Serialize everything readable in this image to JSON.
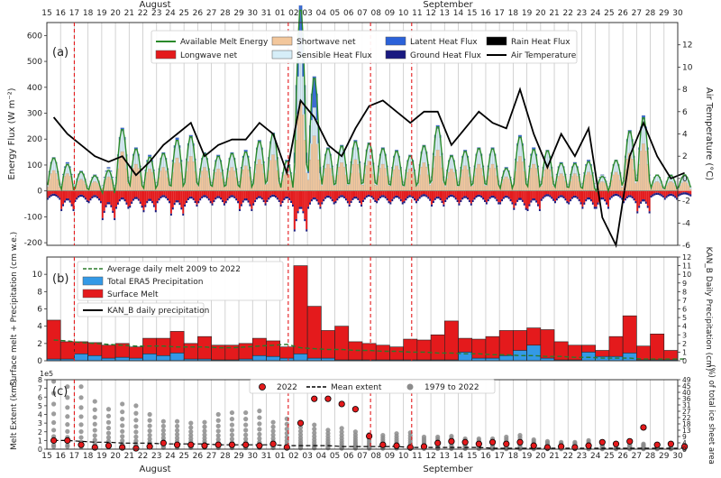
{
  "chart_data": {
    "days": [
      "15",
      "16",
      "17",
      "18",
      "19",
      "20",
      "21",
      "22",
      "23",
      "24",
      "25",
      "26",
      "27",
      "28",
      "29",
      "30",
      "31",
      "01",
      "02",
      "03",
      "04",
      "05",
      "06",
      "07",
      "08",
      "09",
      "10",
      "11",
      "12",
      "13",
      "14",
      "15",
      "16",
      "17",
      "18",
      "19",
      "20",
      "21",
      "22",
      "23",
      "24",
      "25",
      "26",
      "27",
      "28",
      "29",
      "30"
    ],
    "month_top_left": "August",
    "month_top_right": "September",
    "month_bottom_left": "August",
    "month_bottom_right": "September",
    "event_days": [
      2,
      17.6,
      23.6,
      26.6
    ],
    "panel_a": {
      "type": "bar",
      "label": "(a)",
      "ylabel": "Energy Flux (W m⁻²)",
      "y2label": "Air Temperature (°C)",
      "ylim": [
        -210,
        650
      ],
      "y2lim": [
        -6,
        14
      ],
      "yticks": [
        "-200",
        "-100",
        "0",
        "100",
        "200",
        "300",
        "400",
        "500",
        "600"
      ],
      "yticks_values": [
        -200,
        -100,
        0,
        100,
        200,
        300,
        400,
        500,
        600
      ],
      "y2ticks": [
        "-6",
        "-4",
        "-2",
        "0",
        "2",
        "4",
        "6",
        "8",
        "10",
        "12"
      ],
      "y2ticks_values": [
        -6,
        -4,
        -2,
        0,
        2,
        4,
        6,
        8,
        10,
        12
      ],
      "legend": [
        {
          "label": "Available Melt Energy",
          "color": "#2a8a2a",
          "kind": "line"
        },
        {
          "label": "Longwave net",
          "color": "#e41a1c",
          "kind": "box"
        },
        {
          "label": "Shortwave net",
          "color": "#f3c79c",
          "kind": "box"
        },
        {
          "label": "Sensible Heat Flux",
          "color": "#d6eef8",
          "kind": "box"
        },
        {
          "label": "Latent Heat Flux",
          "color": "#2b62d9",
          "kind": "box"
        },
        {
          "label": "Ground Heat Flux",
          "color": "#1a1a80",
          "kind": "box"
        },
        {
          "label": "Rain Heat Flux",
          "color": "#000000",
          "kind": "box"
        },
        {
          "label": "Air Temperature",
          "color": "#000000",
          "kind": "line"
        }
      ],
      "daily_amplitude": [
        130,
        110,
        75,
        60,
        90,
        250,
        170,
        140,
        150,
        210,
        220,
        150,
        140,
        150,
        160,
        200,
        230,
        120,
        570,
        350,
        170,
        180,
        200,
        190,
        170,
        160,
        140,
        180,
        260,
        140,
        160,
        170,
        170,
        90,
        220,
        170,
        160,
        110,
        110,
        120,
        60,
        120,
        240,
        300,
        60,
        60,
        60
      ],
      "longwave_min": [
        -30,
        -80,
        -40,
        -45,
        -120,
        -70,
        -65,
        -85,
        -45,
        -100,
        -60,
        -45,
        -55,
        -45,
        -80,
        -55,
        -40,
        -60,
        -170,
        -70,
        -50,
        -45,
        -60,
        -40,
        -45,
        -50,
        -45,
        -35,
        -60,
        -40,
        -55,
        -40,
        -50,
        -50,
        -75,
        -80,
        -35,
        -45,
        -50,
        -70,
        -70,
        -30,
        -45,
        -90,
        -20,
        -30,
        -15
      ],
      "air_temperature": [
        5.5,
        4.0,
        3.0,
        2.0,
        1.5,
        2.0,
        0.3,
        1.5,
        3.0,
        4.0,
        5.0,
        2.0,
        3.0,
        3.5,
        3.5,
        5.0,
        4.0,
        0.5,
        7.0,
        5.5,
        3.0,
        2.0,
        4.5,
        6.5,
        7.0,
        6.0,
        5.0,
        6.0,
        6.0,
        3.0,
        4.5,
        6.0,
        5.0,
        4.5,
        8.0,
        4.0,
        1.0,
        4.0,
        2.0,
        4.5,
        -3.5,
        -6.0,
        2.0,
        5.0,
        2.0,
        0.0,
        0.5
      ]
    },
    "panel_b": {
      "type": "bar",
      "label": "(b)",
      "ylabel": "Surface melt + Precipitation (cm w.e.)",
      "y2label": "KAN_B Daily Precipitation (cm)",
      "ylim": [
        0,
        12
      ],
      "yticks": [
        "0",
        "2",
        "4",
        "6",
        "8",
        "10"
      ],
      "yticks_values": [
        0,
        2,
        4,
        6,
        8,
        10
      ],
      "y2ticks": [
        "0",
        "1",
        "2",
        "3",
        "4",
        "5",
        "6",
        "7",
        "8",
        "9",
        "10",
        "11",
        "12"
      ],
      "y2ticks_values": [
        0,
        1,
        2,
        3,
        4,
        5,
        6,
        7,
        8,
        9,
        10,
        11,
        12
      ],
      "legend": [
        {
          "label": "Average daily melt 2009 to 2022",
          "color": "#2a7a2a",
          "kind": "dashed"
        },
        {
          "label": "Total ERA5 Precipitation",
          "color": "#3399e6",
          "kind": "box"
        },
        {
          "label": "Surface Melt",
          "color": "#e41a1c",
          "kind": "box"
        },
        {
          "label": "KAN_B daily precipitation",
          "color": "#000000",
          "kind": "line"
        }
      ],
      "surface_melt_total": [
        4.7,
        2.2,
        2.2,
        2.1,
        1.8,
        2.0,
        1.6,
        2.6,
        2.6,
        3.4,
        2.0,
        2.8,
        1.8,
        1.8,
        2.0,
        2.6,
        2.3,
        1.6,
        11.0,
        6.3,
        3.5,
        4.0,
        2.2,
        2.0,
        1.8,
        1.6,
        2.5,
        2.4,
        3.0,
        4.6,
        2.6,
        2.5,
        2.8,
        3.5,
        3.5,
        3.8,
        3.6,
        2.2,
        1.8,
        1.8,
        1.2,
        2.8,
        5.2,
        1.7,
        3.1,
        1.2,
        0.5
      ],
      "era5_precipitation": [
        0.2,
        0.2,
        0.8,
        0.6,
        0.3,
        0.4,
        0.3,
        0.8,
        0.6,
        0.9,
        0.2,
        0.2,
        0.1,
        0.1,
        0.2,
        0.6,
        0.5,
        0.3,
        0.8,
        0.3,
        0.3,
        0.1,
        0.1,
        0.1,
        0.1,
        0.1,
        0.1,
        0.1,
        0.1,
        0.1,
        1.0,
        0.3,
        0.3,
        0.6,
        1.2,
        1.8,
        0.3,
        0.1,
        0.1,
        1.0,
        0.5,
        0.5,
        0.9,
        0.1,
        0.1,
        0.1,
        0.1
      ],
      "average_melt_2009_2022": [
        2.4,
        2.3,
        2.1,
        2.0,
        1.9,
        1.8,
        1.7,
        1.7,
        1.7,
        1.6,
        1.6,
        1.6,
        1.5,
        1.5,
        1.6,
        1.7,
        1.8,
        1.9,
        1.5,
        1.4,
        1.3,
        1.3,
        1.2,
        1.2,
        1.1,
        1.1,
        1.0,
        1.0,
        0.9,
        0.9,
        0.8,
        0.8,
        0.7,
        0.7,
        0.6,
        0.6,
        0.5,
        0.5,
        0.4,
        0.4,
        0.3,
        0.3,
        0.3,
        0.2,
        0.2,
        0.2,
        0.2
      ]
    },
    "panel_c": {
      "type": "scatter",
      "label": "(c)",
      "ylabel": "Melt Extent (km²)",
      "y2label": "(%) of total ice sheet area",
      "ylim": [
        0,
        8
      ],
      "multiplier": "1e5",
      "yticks": [
        "0",
        "1",
        "2",
        "3",
        "4",
        "5",
        "6",
        "7",
        "8"
      ],
      "yticks_values": [
        0,
        1,
        2,
        3,
        4,
        5,
        6,
        7,
        8
      ],
      "y2ticks": [
        "0",
        "4",
        "9",
        "13",
        "18",
        "22",
        "27",
        "31",
        "36",
        "40",
        "45",
        "49"
      ],
      "legend": [
        {
          "label": "2022",
          "color": "#e41a1c",
          "kind": "redpoint"
        },
        {
          "label": "Mean extent",
          "color": "#000000",
          "kind": "dashed"
        },
        {
          "label": "1979 to 2022",
          "color": "#8c8c8c",
          "kind": "greypoint"
        }
      ],
      "melt_2022": [
        1.0,
        1.0,
        0.5,
        0.2,
        0.4,
        0.2,
        0.1,
        0.3,
        0.7,
        0.5,
        0.5,
        0.4,
        0.5,
        0.5,
        0.5,
        0.4,
        0.6,
        0.2,
        3.0,
        5.8,
        5.8,
        5.2,
        4.6,
        1.5,
        0.5,
        0.4,
        0.2,
        0.3,
        0.7,
        0.9,
        0.8,
        0.6,
        0.8,
        0.6,
        0.8,
        0.4,
        0.2,
        0.3,
        0.2,
        0.4,
        0.8,
        0.6,
        0.9,
        2.5,
        0.5,
        0.6,
        0.3
      ],
      "mean_extent": [
        1.0,
        1.0,
        0.9,
        0.8,
        0.8,
        0.7,
        0.7,
        0.7,
        0.6,
        0.6,
        0.6,
        0.6,
        0.5,
        0.5,
        0.5,
        0.5,
        0.5,
        0.4,
        0.4,
        0.4,
        0.4,
        0.3,
        0.3,
        0.3,
        0.3,
        0.3,
        0.2,
        0.2,
        0.2,
        0.2,
        0.2,
        0.2,
        0.1,
        0.1,
        0.1,
        0.1,
        0.1,
        0.1,
        0.1,
        0.1,
        0.1,
        0.1,
        0.1,
        0.1,
        0.1,
        0.1,
        0.1
      ],
      "historical_max": [
        7.8,
        7.2,
        7.2,
        5.5,
        4.6,
        5.2,
        5.0,
        4.0,
        3.2,
        3.2,
        3.0,
        3.1,
        4.0,
        4.2,
        4.2,
        4.4,
        3.1,
        3.5,
        2.5,
        2.8,
        2.2,
        2.4,
        2.0,
        1.7,
        1.6,
        1.8,
        1.9,
        1.4,
        1.4,
        1.5,
        1.2,
        1.2,
        1.2,
        1.4,
        1.6,
        1.1,
        0.9,
        0.8,
        0.8,
        1.0,
        0.7,
        0.7,
        0.8,
        0.6,
        0.5,
        0.6,
        0.5
      ]
    }
  }
}
